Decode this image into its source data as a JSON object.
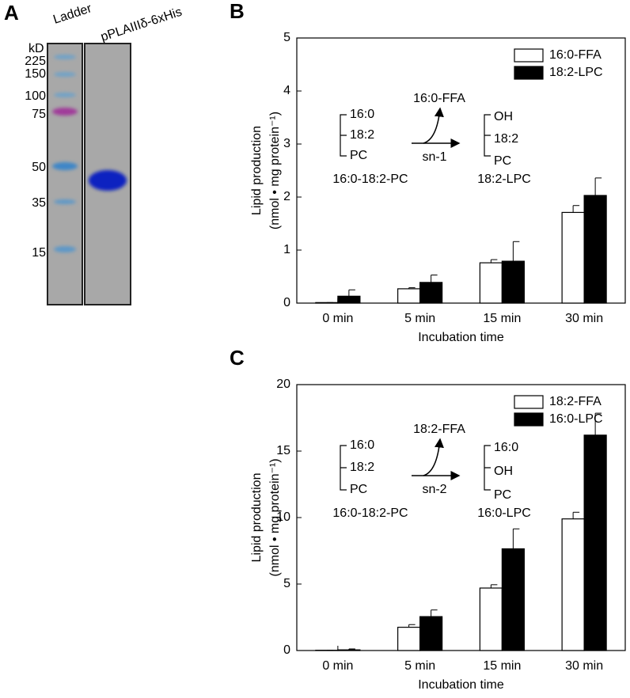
{
  "gel": {
    "panel_label": "A",
    "lanes": [
      "Ladder",
      "pPLAIIIδ-6xHis"
    ],
    "unit": "kD",
    "markers": [
      225,
      150,
      100,
      75,
      50,
      35,
      15
    ]
  },
  "chart_data": [
    {
      "type": "bar",
      "panel_label": "B",
      "ylabel": "Lipid production",
      "ylabel_unit": "(nmol • mg protein⁻¹)",
      "xlabel": "Incubation time",
      "categories": [
        "0 min",
        "5 min",
        "15 min",
        "30 min"
      ],
      "ylim": [
        0,
        5
      ],
      "yticks": [
        0,
        1,
        2,
        3,
        4,
        5
      ],
      "legend": "upper right",
      "series": [
        {
          "name": "16:0-FFA",
          "color": "#ffffff",
          "values": [
            0.01,
            0.27,
            0.76,
            1.71
          ],
          "errors": [
            0,
            0.02,
            0.06,
            0.13
          ]
        },
        {
          "name": "18:2-LPC",
          "color": "#000000",
          "values": [
            0.13,
            0.39,
            0.79,
            2.03
          ],
          "errors": [
            0.12,
            0.14,
            0.37,
            0.33
          ]
        }
      ],
      "scheme": {
        "substrate": [
          "16:0",
          "18:2",
          "PC"
        ],
        "substrate_name": "16:0-18:2-PC",
        "released": "16:0-FFA",
        "position": "sn-1",
        "product": [
          "OH",
          "18:2",
          "PC"
        ],
        "product_name": "18:2-LPC"
      }
    },
    {
      "type": "bar",
      "panel_label": "C",
      "ylabel": "Lipid production",
      "ylabel_unit": "(nmol • mg protein⁻¹)",
      "xlabel": "Incubation time",
      "categories": [
        "0 min",
        "5 min",
        "15 min",
        "30 min"
      ],
      "ylim": [
        0,
        20
      ],
      "yticks": [
        0,
        5,
        10,
        15,
        20
      ],
      "legend": "upper right",
      "series": [
        {
          "name": "18:2-FFA",
          "color": "#ffffff",
          "values": [
            0.02,
            1.75,
            4.7,
            9.9
          ],
          "errors": [
            0,
            0.2,
            0.25,
            0.5
          ]
        },
        {
          "name": "16:0-LPC",
          "color": "#000000",
          "values": [
            0.05,
            2.55,
            7.65,
            16.2
          ],
          "errors": [
            0.07,
            0.5,
            1.5,
            1.65
          ]
        }
      ],
      "scheme": {
        "substrate": [
          "16:0",
          "18:2",
          "PC"
        ],
        "substrate_name": "16:0-18:2-PC",
        "released": "18:2-FFA",
        "position": "sn-2",
        "product": [
          "16:0",
          "OH",
          "PC"
        ],
        "product_name": "16:0-LPC"
      }
    }
  ]
}
